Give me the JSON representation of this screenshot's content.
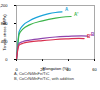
{
  "chart_data": {
    "type": "line",
    "x_label": "Elongation (%)",
    "y_label": "Tensile stress (MPa)",
    "xlim": [
      0,
      60
    ],
    "xticks": [
      0,
      20,
      40,
      60
    ],
    "ylim": [
      0,
      1200
    ],
    "yticks": [
      0,
      400,
      800,
      1200
    ],
    "series": [
      {
        "name": "A",
        "color": "#1aa3d9",
        "x": [
          0,
          1,
          2,
          5,
          10,
          15,
          20,
          25,
          30,
          35
        ],
        "values": [
          0,
          350,
          620,
          760,
          860,
          930,
          980,
          1020,
          1045,
          1060
        ]
      },
      {
        "name": "A'",
        "color": "#3cb44b",
        "x": [
          0,
          1,
          2,
          5,
          10,
          20,
          30,
          38,
          42
        ],
        "values": [
          0,
          320,
          560,
          680,
          770,
          860,
          920,
          950,
          955
        ]
      },
      {
        "name": "B",
        "color": "#8e44ad",
        "x": [
          0,
          1,
          2,
          5,
          10,
          20,
          30,
          40,
          50,
          55
        ],
        "values": [
          0,
          250,
          360,
          400,
          430,
          470,
          500,
          515,
          525,
          520
        ]
      },
      {
        "name": "B'",
        "color": "#d9304f",
        "x": [
          0,
          1,
          2,
          5,
          10,
          20,
          30,
          40,
          48,
          52
        ],
        "values": [
          0,
          220,
          320,
          360,
          390,
          420,
          445,
          460,
          470,
          465
        ]
      }
    ],
    "annotations": [
      "A, CoCrNiMnFe/TiC",
      "B, CoCrNiMnFe/TiC, with addition"
    ]
  }
}
